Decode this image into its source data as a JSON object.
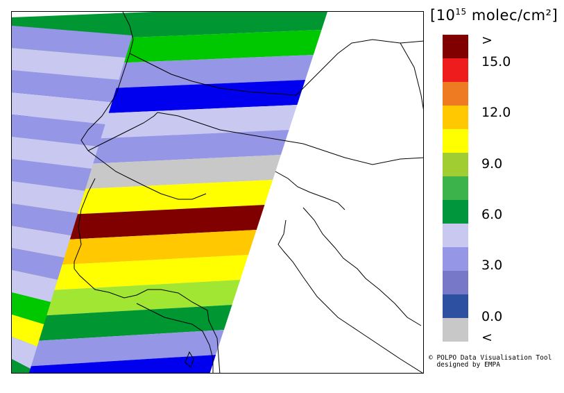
{
  "legend": {
    "unit_prefix": "[10",
    "unit_exponent": "15",
    "unit_suffix": " molec/cm²]",
    "scale_labels": [
      ">",
      "15.0",
      "12.0",
      "9.0",
      "6.0",
      "3.0",
      "0.0",
      "<"
    ],
    "colors": [
      "#800000",
      "#ee1c1c",
      "#ee7a22",
      "#ffc800",
      "#ffff00",
      "#9fcd32",
      "#3cb44b",
      "#00963c",
      "#c8c8f0",
      "#9696e6",
      "#7878c8",
      "#2d50a0",
      "#c8c8c8"
    ]
  },
  "credit": {
    "line1": "© POLPO Data Visualisation Tool",
    "line2": "  designed by EMPA"
  },
  "map": {
    "swaths": [
      {
        "color": "#009632"
      },
      {
        "color": "#00c800"
      },
      {
        "color": "#9696e6"
      },
      {
        "color": "#0000ee"
      },
      {
        "color": "#c8c8f0"
      },
      {
        "color": "#9696e6"
      },
      {
        "color": "#c8c8c8"
      },
      {
        "color": "#ffff00"
      },
      {
        "color": "#800000"
      },
      {
        "color": "#ffc800"
      },
      {
        "color": "#ffff00"
      },
      {
        "color": "#a0e632"
      },
      {
        "color": "#009632"
      },
      {
        "color": "#9696e6"
      },
      {
        "color": "#0000ee"
      }
    ]
  }
}
